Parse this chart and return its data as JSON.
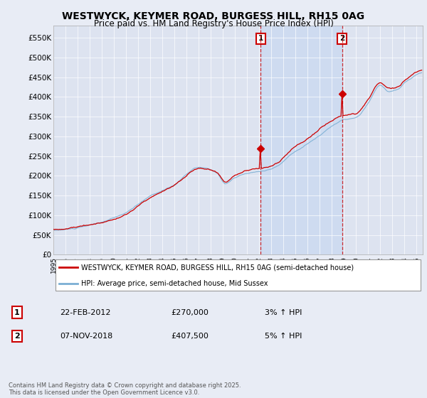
{
  "title": "WESTWYCK, KEYMER ROAD, BURGESS HILL, RH15 0AG",
  "subtitle": "Price paid vs. HM Land Registry's House Price Index (HPI)",
  "ytick_labels": [
    "£0",
    "£50K",
    "£100K",
    "£150K",
    "£200K",
    "£250K",
    "£300K",
    "£350K",
    "£400K",
    "£450K",
    "£500K",
    "£550K"
  ],
  "yticks": [
    0,
    50000,
    100000,
    150000,
    200000,
    250000,
    300000,
    350000,
    400000,
    450000,
    500000,
    550000
  ],
  "ylim": [
    0,
    580000
  ],
  "xlim_start": 1995.0,
  "xlim_end": 2025.5,
  "background_color": "#e8ecf5",
  "plot_bg_color": "#dde3f0",
  "grid_color": "#ffffff",
  "red_line_color": "#cc0000",
  "blue_line_color": "#7bafd4",
  "sale1_x": 2012.12,
  "sale1_y": 270000,
  "sale2_x": 2018.84,
  "sale2_y": 407500,
  "legend_line1": "WESTWYCK, KEYMER ROAD, BURGESS HILL, RH15 0AG (semi-detached house)",
  "legend_line2": "HPI: Average price, semi-detached house, Mid Sussex",
  "annotation1_label": "1",
  "annotation1_date": "22-FEB-2012",
  "annotation1_price": "£270,000",
  "annotation1_hpi": "3% ↑ HPI",
  "annotation2_label": "2",
  "annotation2_date": "07-NOV-2018",
  "annotation2_price": "£407,500",
  "annotation2_hpi": "5% ↑ HPI",
  "footer": "Contains HM Land Registry data © Crown copyright and database right 2025.\nThis data is licensed under the Open Government Licence v3.0."
}
